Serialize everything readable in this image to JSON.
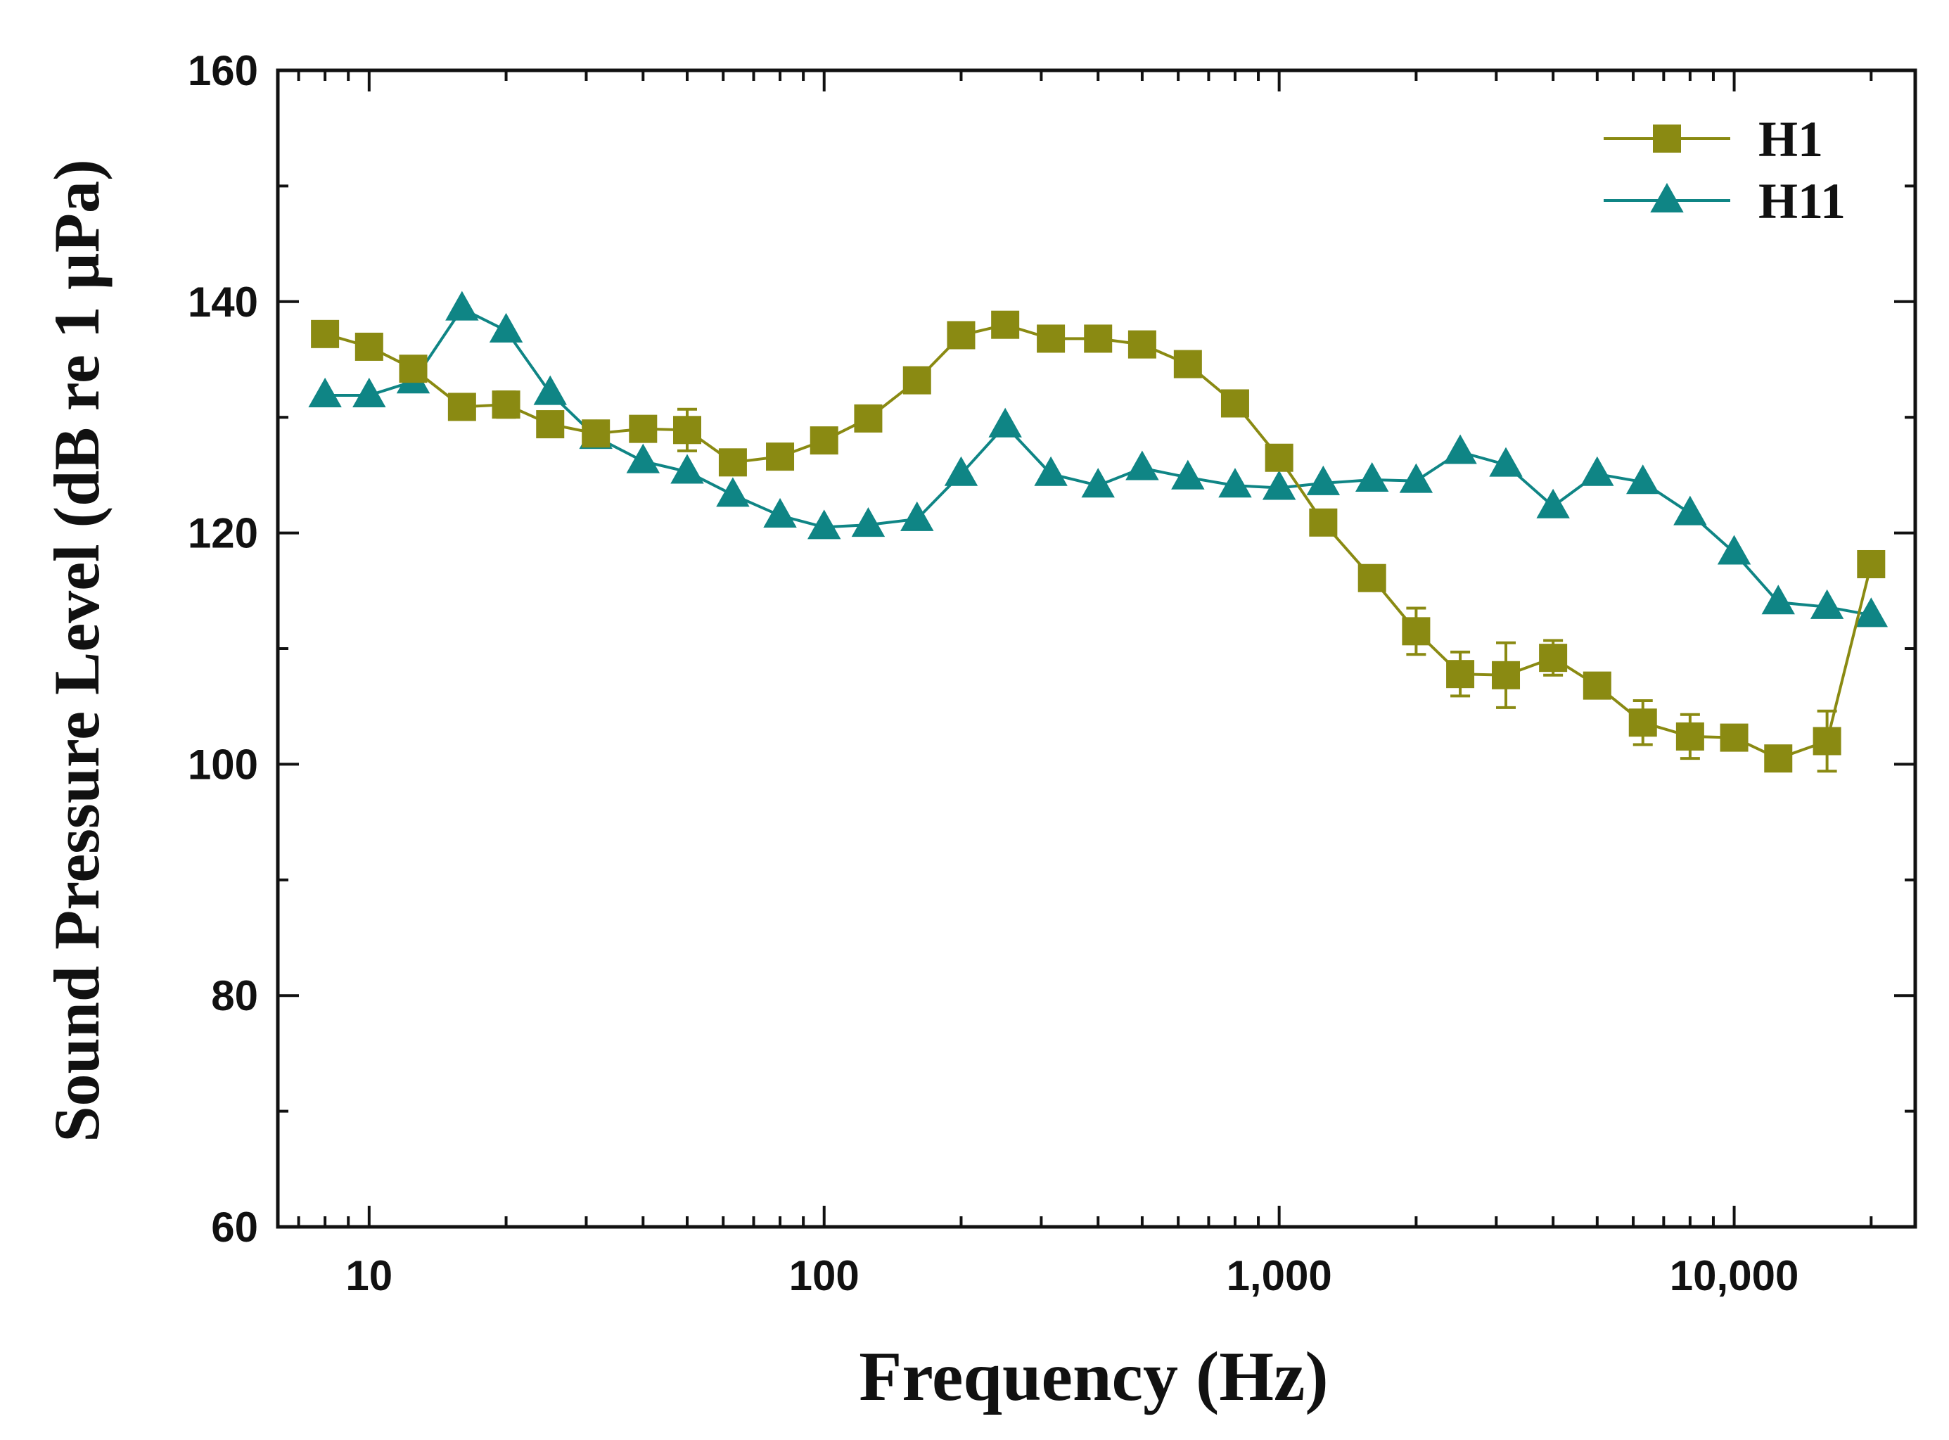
{
  "chart_data": {
    "type": "line",
    "title": "",
    "xlabel": "Frequency (Hz)",
    "ylabel": "Sound Pressure Level (dB re 1 µPa)",
    "xscale": "log",
    "xlim": [
      6.3,
      25000
    ],
    "ylim": [
      60,
      160
    ],
    "xticks": [
      10,
      100,
      1000,
      10000
    ],
    "xtick_labels": [
      "10",
      "100",
      "1,000",
      "10,000"
    ],
    "yticks": [
      60,
      80,
      100,
      120,
      140,
      160
    ],
    "ytick_labels": [
      "60",
      "80",
      "100",
      "120",
      "140",
      "160"
    ],
    "grid": false,
    "legend_position": "top-right",
    "x": [
      8,
      10,
      12.5,
      16,
      20,
      25,
      31.5,
      40,
      50,
      63,
      80,
      100,
      125,
      160,
      200,
      250,
      315,
      400,
      500,
      630,
      800,
      1000,
      1250,
      1600,
      2000,
      2500,
      3150,
      4000,
      5000,
      6300,
      8000,
      10000,
      12500,
      16000,
      20000
    ],
    "series": [
      {
        "name": "H1",
        "color": "#8a8a12",
        "marker": "square",
        "values": [
          137.2,
          136.1,
          134.2,
          130.9,
          131.1,
          129.4,
          128.6,
          129.0,
          128.9,
          126.1,
          126.6,
          128.0,
          129.9,
          133.2,
          137.1,
          138.0,
          136.8,
          136.8,
          136.3,
          134.6,
          131.2,
          126.5,
          120.9,
          116.1,
          111.5,
          107.8,
          107.7,
          109.2,
          106.8,
          103.6,
          102.4,
          102.3,
          100.5,
          102.0,
          117.3
        ],
        "errors": [
          0.6,
          0.6,
          0.6,
          0.6,
          1.1,
          0.6,
          0.6,
          0.6,
          1.8,
          0.6,
          0.6,
          0.6,
          0.6,
          0.6,
          0.6,
          0.6,
          0.6,
          0.6,
          0.6,
          0.6,
          0.6,
          0.6,
          0.6,
          0.6,
          2.0,
          1.9,
          2.8,
          1.5,
          0.6,
          1.9,
          1.9,
          0.6,
          0.6,
          2.6,
          0.6
        ]
      },
      {
        "name": "H11",
        "color": "#0f8585",
        "marker": "triangle",
        "values": [
          131.9,
          131.9,
          133.1,
          139.4,
          137.5,
          132.1,
          128.3,
          126.2,
          125.3,
          123.3,
          121.5,
          120.5,
          120.7,
          121.2,
          125.1,
          129.3,
          125.1,
          124.1,
          125.6,
          124.8,
          124.1,
          123.9,
          124.3,
          124.6,
          124.5,
          127.0,
          125.9,
          122.3,
          125.1,
          124.4,
          121.7,
          118.3,
          114.0,
          113.6,
          112.9
        ]
      }
    ]
  }
}
